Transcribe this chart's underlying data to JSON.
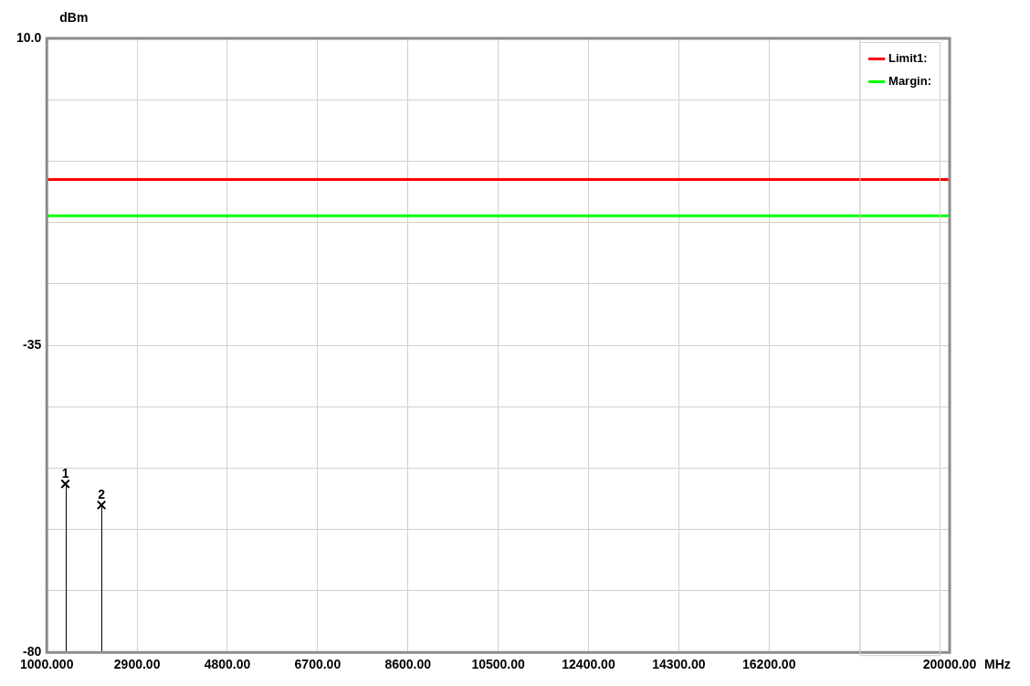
{
  "chart_data": {
    "type": "line",
    "xlabel": "MHz",
    "ylabel": "dBm",
    "xlim": [
      1000,
      20000
    ],
    "xticks": [
      {
        "value": 1000,
        "label": "1000.000"
      },
      {
        "value": 2900,
        "label": "2900.00"
      },
      {
        "value": 4800,
        "label": "4800.00"
      },
      {
        "value": 6700,
        "label": "6700.00"
      },
      {
        "value": 8600,
        "label": "8600.00"
      },
      {
        "value": 10500,
        "label": "10500.00"
      },
      {
        "value": 12400,
        "label": "12400.00"
      },
      {
        "value": 14300,
        "label": "14300.00"
      },
      {
        "value": 16200,
        "label": "16200.00"
      },
      {
        "value": 18100,
        "label": null
      },
      {
        "value": 20000,
        "label": "20000.00"
      }
    ],
    "ylim": [
      -80,
      10
    ],
    "yticks": [
      {
        "value": -80,
        "label": "-80"
      },
      {
        "value": -71,
        "label": null
      },
      {
        "value": -62,
        "label": null
      },
      {
        "value": -53,
        "label": null
      },
      {
        "value": -44,
        "label": null
      },
      {
        "value": -35,
        "label": "-35"
      },
      {
        "value": -26,
        "label": null
      },
      {
        "value": -17,
        "label": null
      },
      {
        "value": -8,
        "label": null
      },
      {
        "value": 1,
        "label": null
      },
      {
        "value": 10,
        "label": "10.0"
      }
    ],
    "grid": true,
    "legend": "top right",
    "series": [
      {
        "name": "Limit1:",
        "type": "line",
        "color": "#ff0000",
        "x": [
          1000,
          20000
        ],
        "values": [
          -10.7,
          -10.7
        ]
      },
      {
        "name": "Margin:",
        "type": "line",
        "color": "#00ff00",
        "x": [
          1000,
          20000
        ],
        "values": [
          -16.0,
          -16.0
        ]
      },
      {
        "type": "lollipop",
        "color": "#000000",
        "marker": "cross",
        "x": [
          1390,
          2150
        ],
        "values": [
          -55.3,
          -58.4
        ]
      }
    ],
    "annotations": [
      {
        "text": "1",
        "x": 1390,
        "y": -55.3
      },
      {
        "text": "2",
        "x": 2150,
        "y": -58.4
      }
    ]
  }
}
